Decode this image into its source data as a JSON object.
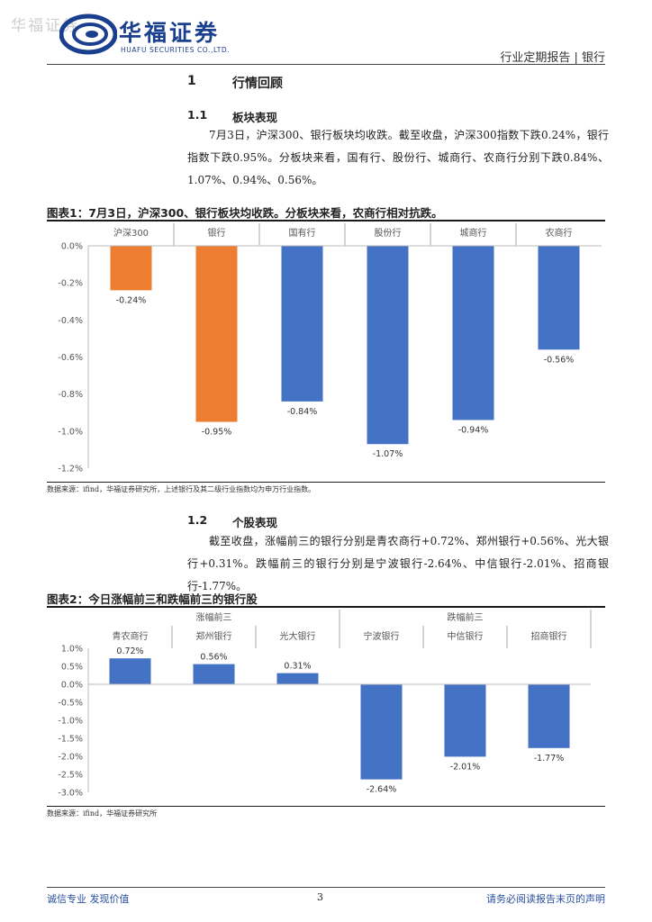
{
  "watermark": "华福证券",
  "logo": {
    "cn": "华福证券",
    "en": "HUAFU SECURITIES CO.,LTD."
  },
  "header": {
    "right": "行业定期报告 | 银行"
  },
  "section1": {
    "num": "1",
    "title": "行情回顾"
  },
  "section11": {
    "num": "1.1",
    "title": "板块表现",
    "para": "7月3日，沪深300、银行板块均收跌。截至收盘，沪深300指数下跌0.24%，银行指数下跌0.95%。分板块来看，国有行、股份行、城商行、农商行分别下跌0.84%、1.07%、0.94%、0.56%。"
  },
  "figure1": {
    "title": "图表1：7月3日，沪深300、银行板块均收跌。分板块来看，农商行相对抗跌。",
    "source": "数据来源：ifind，华福证券研究所，上述银行及其二级行业指数均为申万行业指数。"
  },
  "section12": {
    "num": "1.2",
    "title": "个股表现",
    "para": "截至收盘，涨幅前三的银行分别是青农商行+0.72%、郑州银行+0.56%、光大银行+0.31%。跌幅前三的银行分别是宁波银行-2.64%、中信银行-2.01%、招商银行-1.77%。"
  },
  "figure2": {
    "title": "图表2：今日涨幅前三和跌幅前三的银行股",
    "source": "数据来源：ifind，华福证券研究所"
  },
  "footer": {
    "left": "诚信专业  发现价值",
    "page": "3",
    "right": "请务必阅读报告末页的声明"
  },
  "chart_data": [
    {
      "type": "bar",
      "categories": [
        "沪深300",
        "银行",
        "国有行",
        "股份行",
        "城商行",
        "农商行"
      ],
      "values": [
        -0.24,
        -0.95,
        -0.84,
        -1.07,
        -0.94,
        -0.56
      ],
      "data_labels": [
        "-0.24%",
        "-0.95%",
        "-0.84%",
        "-1.07%",
        "-0.94%",
        "-0.56%"
      ],
      "colors": [
        "#ED7D31",
        "#ED7D31",
        "#4472C4",
        "#4472C4",
        "#4472C4",
        "#4472C4"
      ],
      "yticks": [
        "0.0%",
        "-0.2%",
        "-0.4%",
        "-0.6%",
        "-0.8%",
        "-1.0%",
        "-1.2%"
      ],
      "ylim": [
        -1.2,
        0
      ],
      "category_labels_position": "top",
      "grid": false
    },
    {
      "type": "bar",
      "groups": [
        {
          "label": "涨幅前三",
          "categories": [
            "青农商行",
            "郑州银行",
            "光大银行"
          ]
        },
        {
          "label": "跌幅前三",
          "categories": [
            "宁波银行",
            "中信银行",
            "招商银行"
          ]
        }
      ],
      "categories": [
        "青农商行",
        "郑州银行",
        "光大银行",
        "宁波银行",
        "中信银行",
        "招商银行"
      ],
      "values": [
        0.72,
        0.56,
        0.31,
        -2.64,
        -2.01,
        -1.77
      ],
      "data_labels": [
        "0.72%",
        "0.56%",
        "0.31%",
        "-2.64%",
        "-2.01%",
        "-1.77%"
      ],
      "colors": [
        "#4472C4",
        "#4472C4",
        "#4472C4",
        "#4472C4",
        "#4472C4",
        "#4472C4"
      ],
      "yticks": [
        "1.0%",
        "0.5%",
        "0.0%",
        "-0.5%",
        "-1.0%",
        "-1.5%",
        "-2.0%",
        "-2.5%",
        "-3.0%"
      ],
      "ylim": [
        -3.0,
        1.0
      ],
      "category_labels_position": "top",
      "grid": false
    }
  ]
}
